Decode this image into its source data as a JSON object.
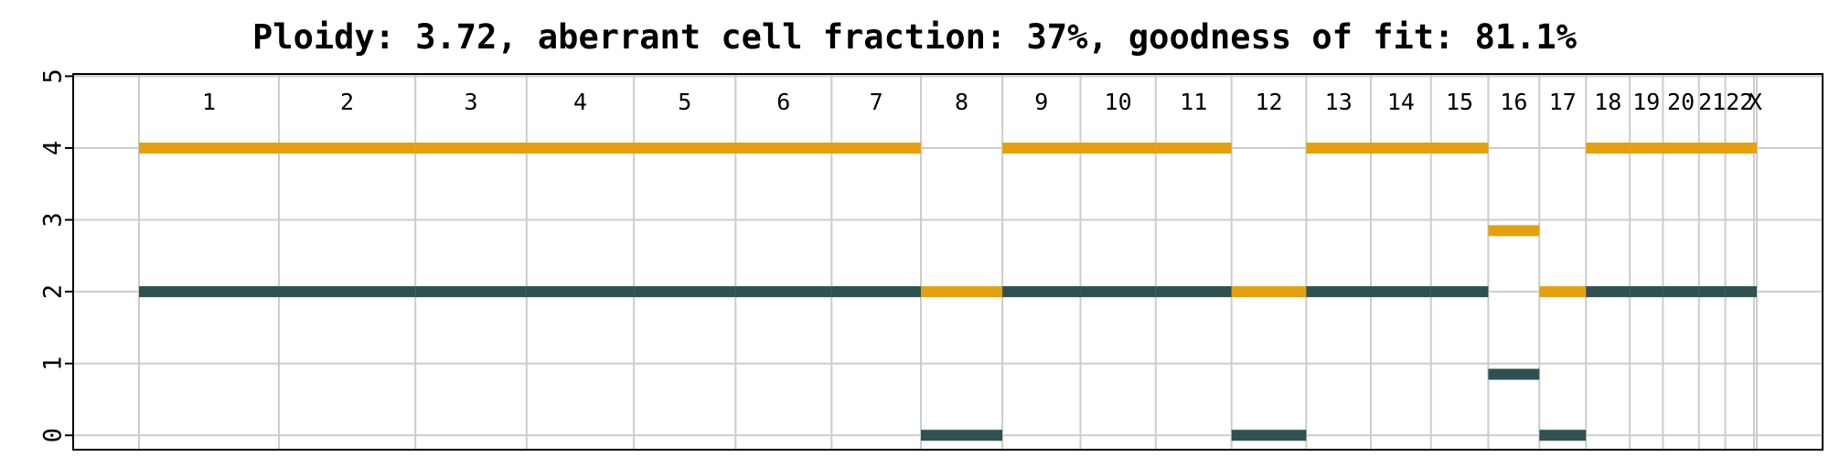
{
  "chart_data": {
    "type": "line",
    "title": "Ploidy: 3.72, aberrant cell fraction: 37%, goodness of fit: 81.1%",
    "xlabel": "",
    "ylabel": "",
    "ylim": [
      -0.2,
      5.03
    ],
    "yticks": [
      0,
      1,
      2,
      3,
      4,
      5
    ],
    "grid": true,
    "colors": {
      "major": "#e5a00d",
      "minor": "#2f5151",
      "grid": "#cccccc",
      "axis": "#000000"
    },
    "chromosomes": [
      {
        "name": "1",
        "start": 0,
        "end": 249
      },
      {
        "name": "2",
        "start": 249,
        "end": 492
      },
      {
        "name": "3",
        "start": 492,
        "end": 690
      },
      {
        "name": "4",
        "start": 690,
        "end": 881
      },
      {
        "name": "5",
        "start": 881,
        "end": 1062
      },
      {
        "name": "6",
        "start": 1062,
        "end": 1233
      },
      {
        "name": "7",
        "start": 1233,
        "end": 1392
      },
      {
        "name": "8",
        "start": 1392,
        "end": 1537
      },
      {
        "name": "9",
        "start": 1537,
        "end": 1676
      },
      {
        "name": "10",
        "start": 1676,
        "end": 1810
      },
      {
        "name": "11",
        "start": 1810,
        "end": 1945
      },
      {
        "name": "12",
        "start": 1945,
        "end": 2078
      },
      {
        "name": "13",
        "start": 2078,
        "end": 2193
      },
      {
        "name": "14",
        "start": 2193,
        "end": 2300
      },
      {
        "name": "15",
        "start": 2300,
        "end": 2402
      },
      {
        "name": "16",
        "start": 2402,
        "end": 2493
      },
      {
        "name": "17",
        "start": 2493,
        "end": 2576
      },
      {
        "name": "18",
        "start": 2576,
        "end": 2654
      },
      {
        "name": "19",
        "start": 2654,
        "end": 2713
      },
      {
        "name": "20",
        "start": 2713,
        "end": 2777
      },
      {
        "name": "21",
        "start": 2777,
        "end": 2824
      },
      {
        "name": "22",
        "start": 2824,
        "end": 2875
      },
      {
        "name": "X",
        "start": 2875,
        "end": 2880
      }
    ],
    "series": [
      {
        "role": "major",
        "segments": [
          {
            "chrom": "1",
            "cn": 4
          },
          {
            "chrom": "2",
            "cn": 4
          },
          {
            "chrom": "3",
            "cn": 4
          },
          {
            "chrom": "4",
            "cn": 4
          },
          {
            "chrom": "5",
            "cn": 4
          },
          {
            "chrom": "6",
            "cn": 4
          },
          {
            "chrom": "7",
            "cn": 4
          },
          {
            "chrom": "8",
            "cn": 2
          },
          {
            "chrom": "9",
            "cn": 4
          },
          {
            "chrom": "10",
            "cn": 4
          },
          {
            "chrom": "11",
            "cn": 4
          },
          {
            "chrom": "12",
            "cn": 2
          },
          {
            "chrom": "13",
            "cn": 4
          },
          {
            "chrom": "14",
            "cn": 4
          },
          {
            "chrom": "15",
            "cn": 4
          },
          {
            "chrom": "16",
            "cn": 2.85
          },
          {
            "chrom": "17",
            "cn": 2
          },
          {
            "chrom": "18",
            "cn": 4
          },
          {
            "chrom": "19",
            "cn": 4
          },
          {
            "chrom": "20",
            "cn": 4
          },
          {
            "chrom": "21",
            "cn": 4
          },
          {
            "chrom": "22",
            "cn": 4
          },
          {
            "chrom": "X",
            "cn": 4
          }
        ]
      },
      {
        "role": "minor",
        "segments": [
          {
            "chrom": "1",
            "cn": 2
          },
          {
            "chrom": "2",
            "cn": 2
          },
          {
            "chrom": "3",
            "cn": 2
          },
          {
            "chrom": "4",
            "cn": 2
          },
          {
            "chrom": "5",
            "cn": 2
          },
          {
            "chrom": "6",
            "cn": 2
          },
          {
            "chrom": "7",
            "cn": 2
          },
          {
            "chrom": "8",
            "cn": 0
          },
          {
            "chrom": "9",
            "cn": 2
          },
          {
            "chrom": "10",
            "cn": 2
          },
          {
            "chrom": "11",
            "cn": 2
          },
          {
            "chrom": "12",
            "cn": 0
          },
          {
            "chrom": "13",
            "cn": 2
          },
          {
            "chrom": "14",
            "cn": 2
          },
          {
            "chrom": "15",
            "cn": 2
          },
          {
            "chrom": "16",
            "cn": 0.85
          },
          {
            "chrom": "17",
            "cn": 0
          },
          {
            "chrom": "18",
            "cn": 2
          },
          {
            "chrom": "19",
            "cn": 2
          },
          {
            "chrom": "20",
            "cn": 2
          },
          {
            "chrom": "21",
            "cn": 2
          },
          {
            "chrom": "22",
            "cn": 2
          },
          {
            "chrom": "X",
            "cn": 2
          }
        ]
      }
    ]
  }
}
